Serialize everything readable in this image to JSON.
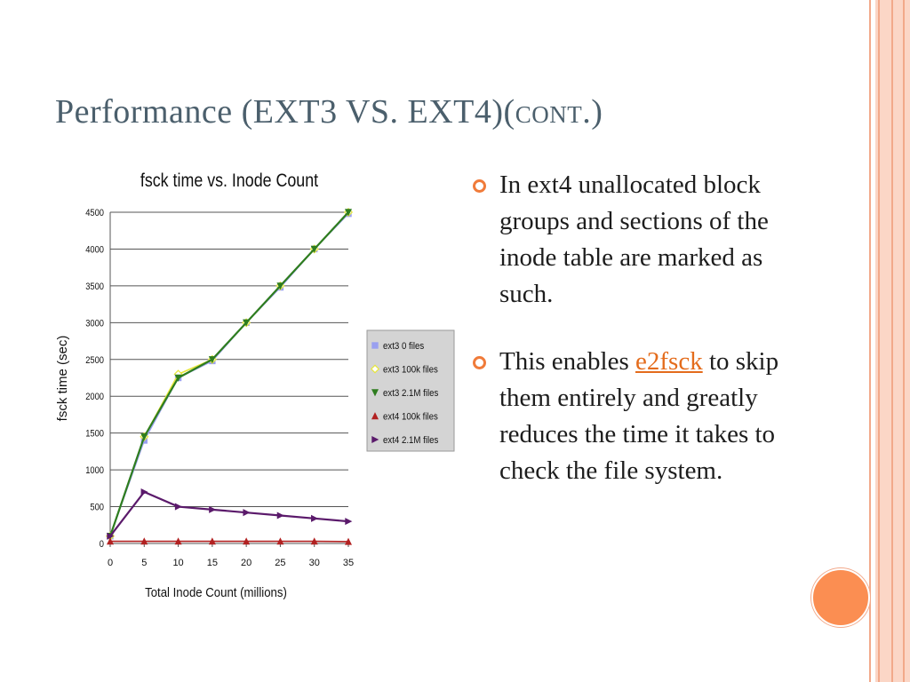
{
  "slide": {
    "title_main": "Performance (EXT3 VS. EXT4)(",
    "title_sc": "cont.",
    "title_close": ")"
  },
  "bullets": [
    {
      "text": "In ext4 unallocated block groups and sections of the inode table are marked as such."
    },
    {
      "pre": "This enables ",
      "link": "e2fsck",
      "post": " to skip them entirely and greatly reduces the time it takes to check the file system."
    }
  ],
  "colors": {
    "accent": "#f07b3a",
    "title": "#4b5f6c",
    "link": "#e46c1c"
  },
  "chart_data": {
    "type": "line",
    "title": "fsck time vs. Inode Count",
    "xlabel": "Total Inode Count (millions)",
    "ylabel": "fsck time (sec)",
    "x": [
      0,
      5,
      10,
      15,
      20,
      25,
      30,
      35
    ],
    "xticks": [
      0,
      5,
      10,
      15,
      20,
      25,
      30,
      35
    ],
    "yticks": [
      0,
      500,
      1000,
      1500,
      2000,
      2500,
      3000,
      3500,
      4000,
      4500
    ],
    "xlim": [
      0,
      35
    ],
    "ylim": [
      0,
      4500
    ],
    "grid": "horizontal",
    "legend_position": "right",
    "series": [
      {
        "name": "ext3 0 files",
        "values": [
          100,
          1400,
          2250,
          2480,
          3000,
          3480,
          4000,
          4480
        ],
        "color": "#9aa0f0",
        "marker": "square"
      },
      {
        "name": "ext3 100k files",
        "values": [
          100,
          1450,
          2300,
          2500,
          3000,
          3500,
          4000,
          4500
        ],
        "color": "#e6e63a",
        "marker": "diamond"
      },
      {
        "name": "ext3 2.1M files",
        "values": [
          100,
          1450,
          2250,
          2500,
          3000,
          3500,
          4000,
          4500
        ],
        "color": "#2e7d1f",
        "marker": "triangle-down"
      },
      {
        "name": "ext4 100k files",
        "values": [
          30,
          30,
          30,
          30,
          30,
          30,
          30,
          25
        ],
        "color": "#b22222",
        "marker": "triangle-up"
      },
      {
        "name": "ext4 2.1M files",
        "values": [
          100,
          700,
          500,
          460,
          420,
          380,
          340,
          300
        ],
        "color": "#5b1a6b",
        "marker": "triangle-right"
      }
    ]
  }
}
